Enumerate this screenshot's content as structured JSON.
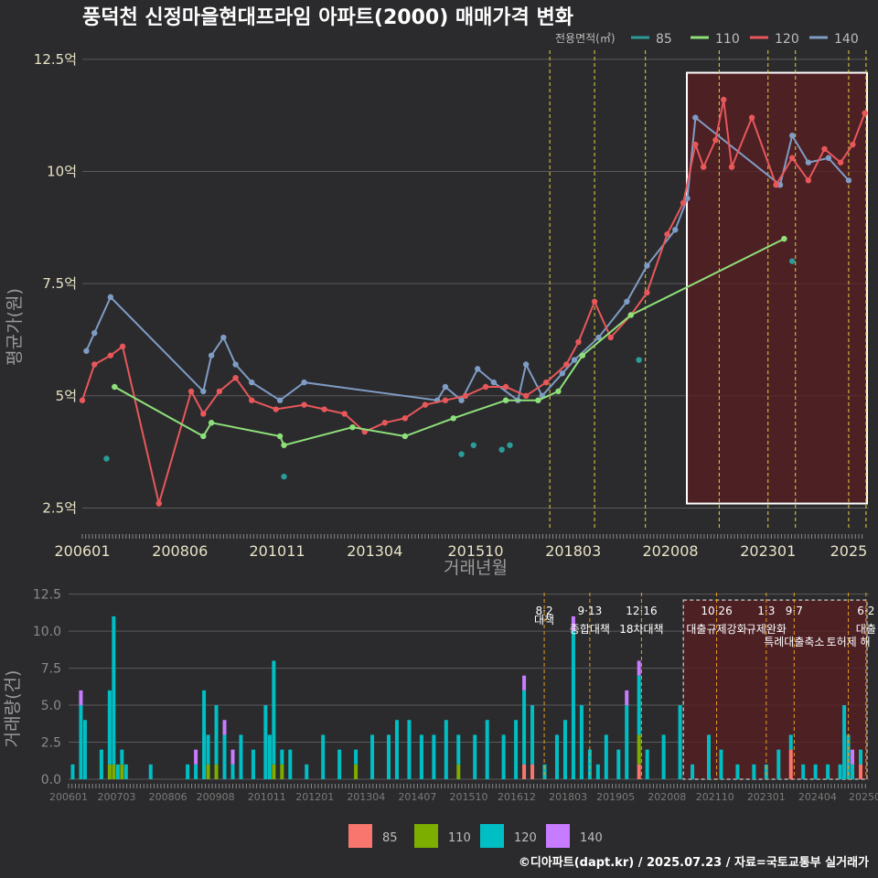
{
  "title": "풍덕천 신정마을현대프라임 아파트(2000) 매매가격 변화",
  "legend_top": {
    "title": "전용면적(㎡)",
    "items": [
      {
        "label": "85",
        "color": "#2a9d9a"
      },
      {
        "label": "110",
        "color": "#8ee07a"
      },
      {
        "label": "120",
        "color": "#e8575a"
      },
      {
        "label": "140",
        "color": "#7f9cc4"
      }
    ]
  },
  "legend_bottom": {
    "items": [
      {
        "label": "85",
        "color": "#f8766d"
      },
      {
        "label": "110",
        "color": "#7cae00"
      },
      {
        "label": "120",
        "color": "#00bfc4"
      },
      {
        "label": "140",
        "color": "#c77cff"
      }
    ]
  },
  "footer": "©디아파트(dapt.kr) / 2025.07.23 / 자료=국토교통부 실거래가",
  "chart_data": [
    {
      "type": "line",
      "title": "풍덕천 신정마을현대프라임 아파트(2000) 매매가격 변화",
      "xlabel": "거래년월",
      "ylabel": "평균가(원)",
      "x_ticks": [
        "200601",
        "200806",
        "201011",
        "201304",
        "201510",
        "201803",
        "202008",
        "202301",
        "2025"
      ],
      "x_tick_values": [
        2006.0,
        2008.42,
        2010.83,
        2013.25,
        2015.75,
        2018.17,
        2020.58,
        2023.0,
        2025.0
      ],
      "xlim": [
        2006.0,
        2025.5
      ],
      "y_ticks": [
        "2.5억",
        "5억",
        "7.5억",
        "10억",
        "12.5억"
      ],
      "y_tick_values": [
        2.5,
        5,
        7.5,
        10,
        12.5
      ],
      "ylim": [
        2.0,
        12.7
      ],
      "policy_lines": [
        2017.59,
        2018.7,
        2019.96,
        2021.79,
        2023.0,
        2023.68,
        2025.0,
        2025.43
      ],
      "highlight_range": [
        2020.58,
        2025.5
      ],
      "series": [
        {
          "name": "140",
          "color": "#7f9cc4",
          "points": [
            [
              2006.1,
              6.0
            ],
            [
              2006.3,
              6.4
            ],
            [
              2006.7,
              7.2
            ],
            [
              2009.0,
              5.1
            ],
            [
              2009.2,
              5.9
            ],
            [
              2009.5,
              6.3
            ],
            [
              2009.8,
              5.7
            ],
            [
              2010.2,
              5.3
            ],
            [
              2010.9,
              4.9
            ],
            [
              2011.5,
              5.3
            ],
            [
              2014.8,
              4.9
            ],
            [
              2015.0,
              5.2
            ],
            [
              2015.4,
              4.9
            ],
            [
              2015.8,
              5.6
            ],
            [
              2016.2,
              5.3
            ],
            [
              2016.8,
              4.9
            ],
            [
              2017.0,
              5.7
            ],
            [
              2017.4,
              5.0
            ],
            [
              2017.9,
              5.5
            ],
            [
              2018.2,
              5.8
            ],
            [
              2018.8,
              6.3
            ],
            [
              2019.5,
              7.1
            ],
            [
              2020.0,
              7.9
            ],
            [
              2020.7,
              8.7
            ],
            [
              2021.0,
              9.4
            ],
            [
              2021.2,
              11.2
            ],
            [
              2023.3,
              9.7
            ],
            [
              2023.6,
              10.8
            ],
            [
              2024.0,
              10.2
            ],
            [
              2024.5,
              10.3
            ],
            [
              2025.0,
              9.8
            ]
          ]
        },
        {
          "name": "120",
          "color": "#e8575a",
          "points": [
            [
              2006.0,
              4.9
            ],
            [
              2006.3,
              5.7
            ],
            [
              2006.7,
              5.9
            ],
            [
              2007.0,
              6.1
            ],
            [
              2007.9,
              2.6
            ],
            [
              2008.7,
              5.1
            ],
            [
              2009.0,
              4.6
            ],
            [
              2009.4,
              5.1
            ],
            [
              2009.8,
              5.4
            ],
            [
              2010.2,
              4.9
            ],
            [
              2010.8,
              4.7
            ],
            [
              2011.5,
              4.8
            ],
            [
              2012.0,
              4.7
            ],
            [
              2012.5,
              4.6
            ],
            [
              2013.0,
              4.2
            ],
            [
              2013.5,
              4.4
            ],
            [
              2014.0,
              4.5
            ],
            [
              2014.5,
              4.8
            ],
            [
              2015.0,
              4.9
            ],
            [
              2015.5,
              5.0
            ],
            [
              2016.0,
              5.2
            ],
            [
              2016.5,
              5.2
            ],
            [
              2017.0,
              5.0
            ],
            [
              2017.5,
              5.3
            ],
            [
              2018.0,
              5.7
            ],
            [
              2018.3,
              6.2
            ],
            [
              2018.7,
              7.1
            ],
            [
              2019.1,
              6.3
            ],
            [
              2019.6,
              6.8
            ],
            [
              2020.0,
              7.3
            ],
            [
              2020.5,
              8.6
            ],
            [
              2020.9,
              9.3
            ],
            [
              2021.2,
              10.6
            ],
            [
              2021.4,
              10.1
            ],
            [
              2021.7,
              10.7
            ],
            [
              2021.9,
              11.6
            ],
            [
              2022.1,
              10.1
            ],
            [
              2022.6,
              11.2
            ],
            [
              2023.2,
              9.7
            ],
            [
              2023.6,
              10.3
            ],
            [
              2024.0,
              9.8
            ],
            [
              2024.4,
              10.5
            ],
            [
              2024.8,
              10.2
            ],
            [
              2025.1,
              10.6
            ],
            [
              2025.4,
              11.3
            ]
          ]
        },
        {
          "name": "110",
          "color": "#8ee07a",
          "points": [
            [
              2006.8,
              5.2
            ],
            [
              2009.0,
              4.1
            ],
            [
              2009.2,
              4.4
            ],
            [
              2010.9,
              4.1
            ],
            [
              2011.0,
              3.9
            ],
            [
              2012.7,
              4.3
            ],
            [
              2014.0,
              4.1
            ],
            [
              2015.2,
              4.5
            ],
            [
              2016.5,
              4.9
            ],
            [
              2017.3,
              4.9
            ],
            [
              2017.8,
              5.1
            ],
            [
              2018.4,
              5.9
            ],
            [
              2019.6,
              6.8
            ],
            [
              2023.4,
              8.5
            ]
          ]
        },
        {
          "name": "85",
          "color": "#2a9d9a",
          "points": [
            [
              2006.6,
              3.6
            ],
            [
              2011.0,
              3.2
            ],
            [
              2015.4,
              3.7
            ],
            [
              2015.7,
              3.9
            ],
            [
              2016.4,
              3.8
            ],
            [
              2016.6,
              3.9
            ],
            [
              2019.8,
              5.8
            ],
            [
              2023.6,
              8.0
            ]
          ]
        }
      ]
    },
    {
      "type": "bar",
      "title": "거래량",
      "xlabel": "",
      "ylabel": "거래량(건)",
      "x_ticks": [
        "200601",
        "200703",
        "200806",
        "200908",
        "201011",
        "201201",
        "201304",
        "201407",
        "201510",
        "201612",
        "201803",
        "201905",
        "202008",
        "202110",
        "202301",
        "202404",
        "20250"
      ],
      "x_tick_values": [
        2006.0,
        2007.17,
        2008.42,
        2009.58,
        2010.83,
        2012.0,
        2013.25,
        2014.5,
        2015.75,
        2016.92,
        2018.17,
        2019.33,
        2020.58,
        2021.75,
        2023.0,
        2024.25,
        2025.4
      ],
      "xlim": [
        2006.0,
        2025.5
      ],
      "y_ticks": [
        "0.0",
        "2.5",
        "5.0",
        "7.5",
        "10.0",
        "12.5"
      ],
      "y_tick_values": [
        0,
        2.5,
        5,
        7.5,
        10,
        12.5
      ],
      "ylim": [
        0,
        12.6
      ],
      "policy_events": [
        {
          "x": 2017.59,
          "date": "8·2",
          "label": "대책"
        },
        {
          "x": 2018.7,
          "date": "9·13",
          "label": "종합대책"
        },
        {
          "x": 2019.96,
          "date": "12·16",
          "label": "18차대책"
        },
        {
          "x": 2021.79,
          "date": "10·26",
          "label": "대출규제강화"
        },
        {
          "x": 2023.0,
          "date": "1·3",
          "label": "규제완화"
        },
        {
          "x": 2023.68,
          "date": "9·7",
          "label": "특례대출축소"
        },
        {
          "x": 2025.0,
          "date": "",
          "label": "토허제 해"
        },
        {
          "x": 2025.43,
          "date": "6·2",
          "label": "대출"
        }
      ],
      "highlight_range": [
        2020.58,
        2025.5
      ],
      "series_names": [
        "85",
        "110",
        "120",
        "140"
      ],
      "stacked": [
        [
          2006.1,
          0,
          0,
          1,
          0
        ],
        [
          2006.3,
          0,
          0,
          5,
          1
        ],
        [
          2006.4,
          0,
          0,
          4,
          0
        ],
        [
          2006.8,
          0,
          0,
          2,
          0
        ],
        [
          2007.0,
          0,
          1,
          5,
          0
        ],
        [
          2007.1,
          0,
          1,
          10,
          0
        ],
        [
          2007.2,
          0,
          0,
          1,
          0
        ],
        [
          2007.3,
          0,
          1,
          1,
          0
        ],
        [
          2007.4,
          0,
          0,
          1,
          0
        ],
        [
          2008.0,
          0,
          0,
          1,
          0
        ],
        [
          2008.9,
          0,
          0,
          1,
          0
        ],
        [
          2009.1,
          0,
          0,
          1,
          1
        ],
        [
          2009.3,
          0,
          0,
          6,
          0
        ],
        [
          2009.4,
          0,
          1,
          2,
          0
        ],
        [
          2009.6,
          0,
          1,
          4,
          0
        ],
        [
          2009.8,
          0,
          0,
          3,
          1
        ],
        [
          2010.0,
          0,
          0,
          1,
          1
        ],
        [
          2010.2,
          0,
          0,
          3,
          0
        ],
        [
          2010.5,
          0,
          0,
          2,
          0
        ],
        [
          2010.8,
          0,
          0,
          5,
          0
        ],
        [
          2010.9,
          0,
          0,
          3,
          0
        ],
        [
          2011.0,
          0,
          1,
          7,
          0
        ],
        [
          2011.2,
          0,
          1,
          1,
          0
        ],
        [
          2011.4,
          0,
          0,
          2,
          0
        ],
        [
          2011.8,
          0,
          0,
          1,
          0
        ],
        [
          2012.2,
          0,
          0,
          3,
          0
        ],
        [
          2012.6,
          0,
          0,
          2,
          0
        ],
        [
          2013.0,
          0,
          1,
          1,
          0
        ],
        [
          2013.4,
          0,
          0,
          3,
          0
        ],
        [
          2013.8,
          0,
          0,
          3,
          0
        ],
        [
          2014.0,
          0,
          0,
          4,
          0
        ],
        [
          2014.3,
          0,
          0,
          4,
          0
        ],
        [
          2014.6,
          0,
          0,
          3,
          0
        ],
        [
          2014.9,
          0,
          0,
          3,
          0
        ],
        [
          2015.2,
          0,
          0,
          4,
          0
        ],
        [
          2015.5,
          0,
          1,
          2,
          0
        ],
        [
          2015.9,
          0,
          0,
          3,
          0
        ],
        [
          2016.2,
          0,
          0,
          4,
          0
        ],
        [
          2016.6,
          0,
          0,
          3,
          0
        ],
        [
          2016.9,
          0,
          0,
          4,
          0
        ],
        [
          2017.1,
          1,
          0,
          5,
          1
        ],
        [
          2017.3,
          1,
          0,
          4,
          0
        ],
        [
          2017.6,
          0,
          0,
          1,
          0
        ],
        [
          2017.9,
          0,
          0,
          3,
          0
        ],
        [
          2018.1,
          0,
          0,
          4,
          0
        ],
        [
          2018.3,
          0,
          0,
          10,
          1
        ],
        [
          2018.5,
          0,
          0,
          5,
          0
        ],
        [
          2018.7,
          0,
          0,
          2,
          0
        ],
        [
          2018.9,
          0,
          0,
          1,
          0
        ],
        [
          2019.1,
          0,
          0,
          3,
          0
        ],
        [
          2019.4,
          0,
          0,
          2,
          0
        ],
        [
          2019.6,
          0,
          0,
          5,
          1
        ],
        [
          2019.9,
          1,
          2,
          4,
          1
        ],
        [
          2020.1,
          0,
          0,
          2,
          0
        ],
        [
          2020.5,
          0,
          0,
          3,
          0
        ],
        [
          2020.9,
          0,
          0,
          5,
          0
        ],
        [
          2021.2,
          0,
          0,
          1,
          0
        ],
        [
          2021.6,
          0,
          0,
          3,
          0
        ],
        [
          2021.9,
          0,
          0,
          2,
          0
        ],
        [
          2022.3,
          0,
          0,
          1,
          0
        ],
        [
          2022.7,
          0,
          0,
          1,
          0
        ],
        [
          2023.0,
          0,
          0,
          1,
          0
        ],
        [
          2023.3,
          0,
          0,
          2,
          0
        ],
        [
          2023.6,
          2,
          0,
          1,
          0
        ],
        [
          2023.9,
          0,
          0,
          1,
          0
        ],
        [
          2024.2,
          0,
          0,
          1,
          0
        ],
        [
          2024.5,
          0,
          0,
          1,
          0
        ],
        [
          2024.8,
          0,
          0,
          1,
          0
        ],
        [
          2024.9,
          0,
          0,
          5,
          0
        ],
        [
          2025.0,
          0,
          0,
          3,
          0
        ],
        [
          2025.1,
          0,
          0,
          1,
          1
        ],
        [
          2025.3,
          1,
          0,
          1,
          0
        ]
      ]
    }
  ]
}
